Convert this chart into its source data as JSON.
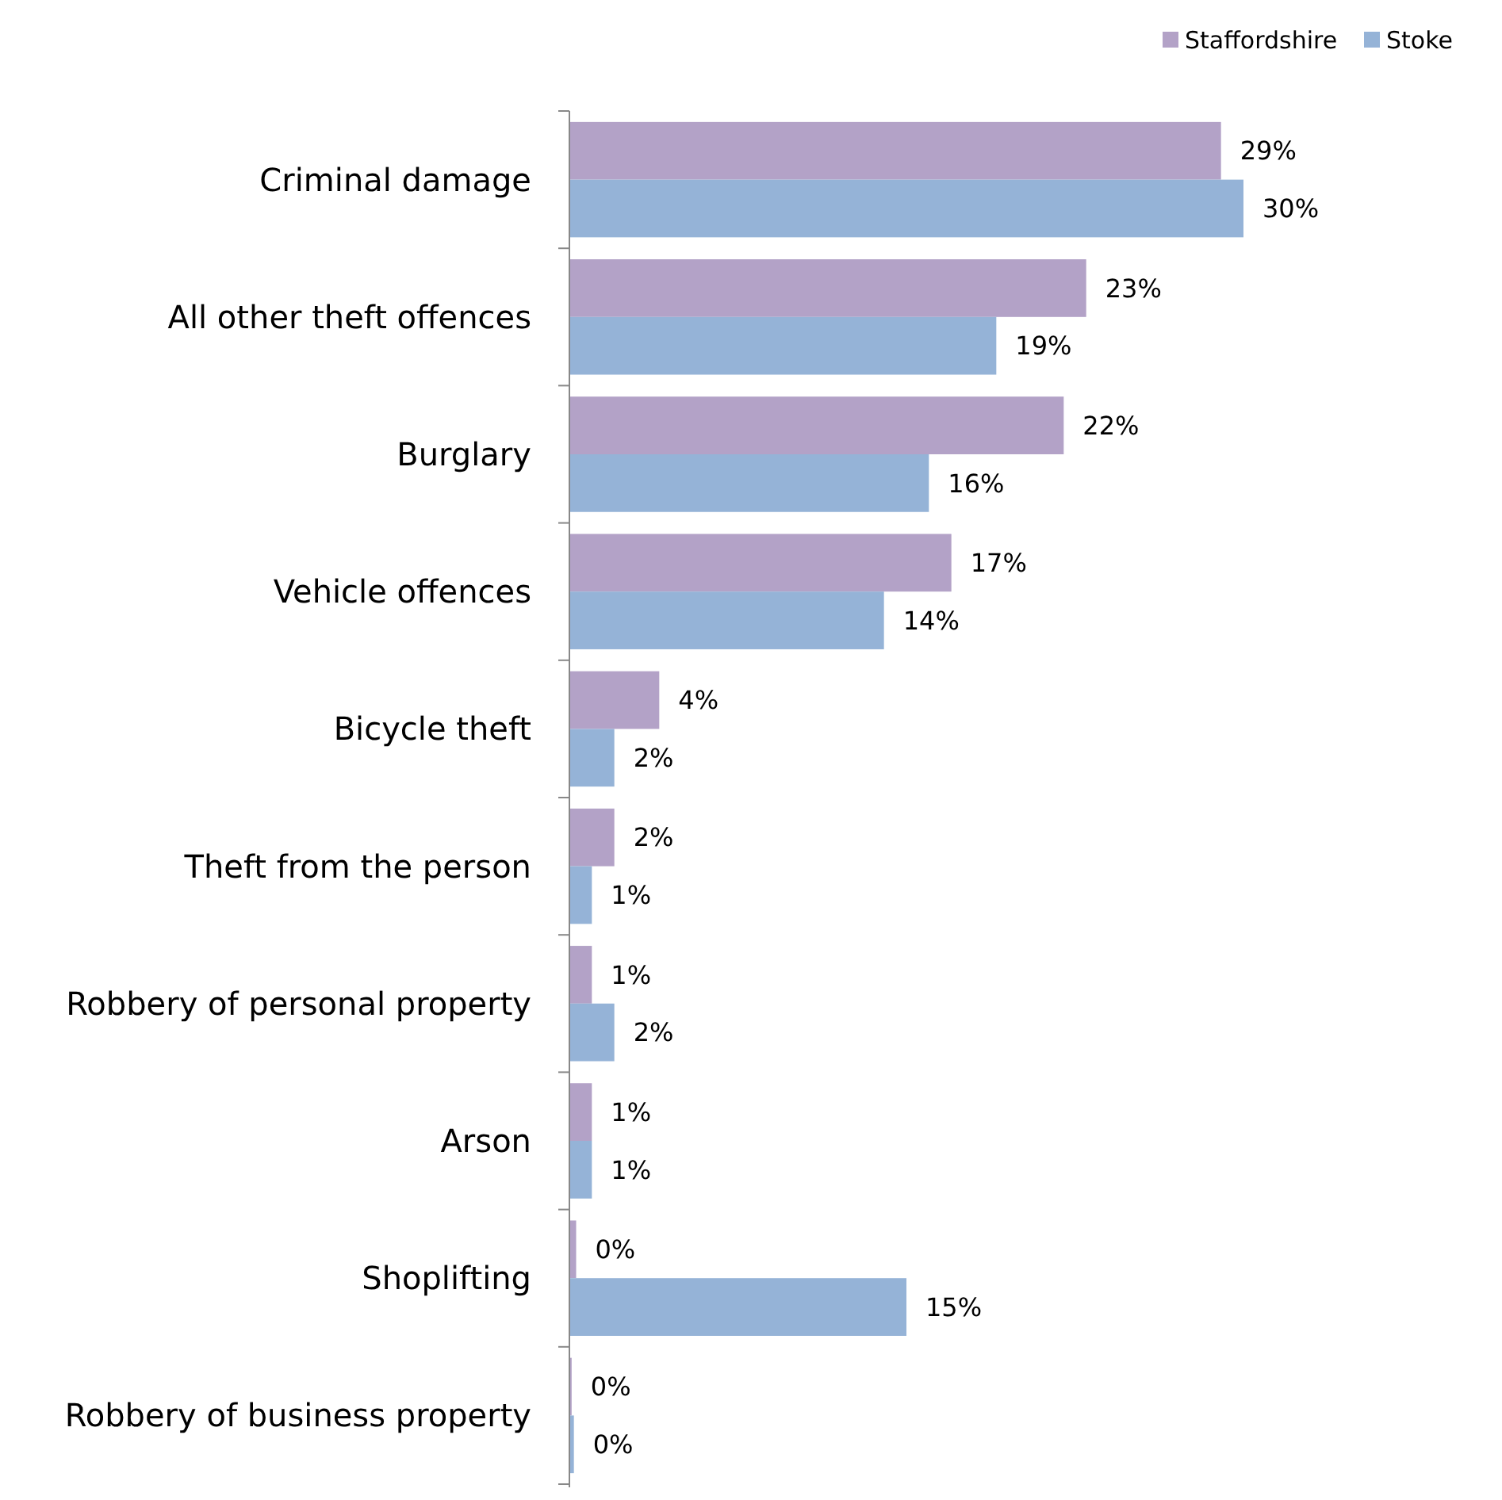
{
  "chart_data": {
    "type": "bar",
    "orientation": "horizontal",
    "legend": "top right",
    "categories": [
      "Criminal damage",
      "All other theft offences",
      "Burglary",
      "Vehicle offences",
      "Bicycle theft",
      "Theft from the person",
      "Robbery of personal property",
      "Arson",
      "Shoplifting",
      "Robbery of business property"
    ],
    "series": [
      {
        "name": "Staffordshire",
        "color": "#b3a2c7",
        "values": [
          29,
          23,
          22,
          17,
          4,
          2,
          1,
          1,
          0.3,
          0.1
        ],
        "value_labels": [
          "29%",
          "23%",
          "22%",
          "17%",
          "4%",
          "2%",
          "1%",
          "1%",
          "0%",
          "0%"
        ]
      },
      {
        "name": "Stoke",
        "color": "#95b3d7",
        "values": [
          30,
          19,
          16,
          14,
          2,
          1,
          2,
          1,
          15,
          0.2
        ],
        "value_labels": [
          "30%",
          "19%",
          "16%",
          "14%",
          "2%",
          "1%",
          "2%",
          "1%",
          "15%",
          "0%"
        ]
      }
    ]
  }
}
